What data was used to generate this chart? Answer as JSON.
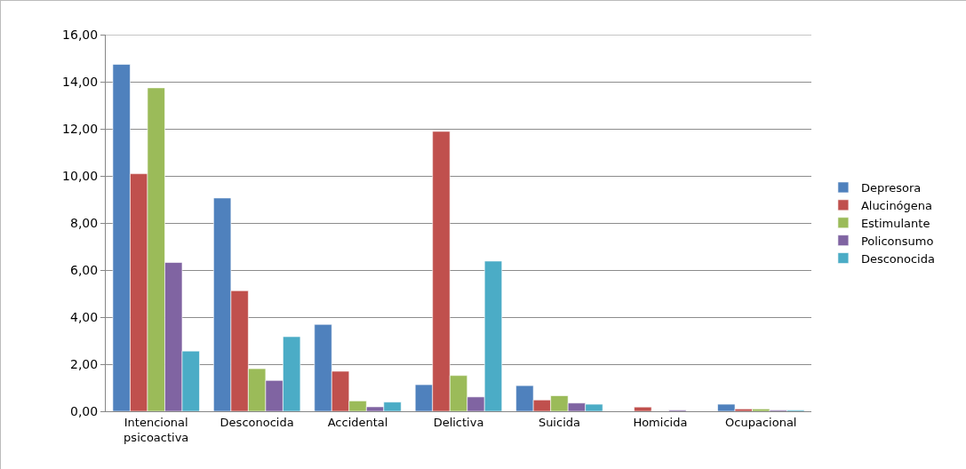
{
  "chart_data": {
    "type": "bar",
    "categories": [
      "Intencional\npsicoactiva",
      "Desconocida",
      "Accidental",
      "Delictiva",
      "Suicida",
      "Homicida",
      "Ocupacional"
    ],
    "series": [
      {
        "name": "Depresora",
        "color": "#4f81bd",
        "values": [
          14.74,
          9.06,
          3.69,
          1.13,
          1.09,
          null,
          0.3
        ]
      },
      {
        "name": "Alucinógena",
        "color": "#c0504d",
        "values": [
          10.09,
          5.12,
          1.7,
          11.89,
          0.48,
          0.18,
          0.1
        ]
      },
      {
        "name": "Estimulante",
        "color": "#9bbb59",
        "values": [
          13.74,
          1.81,
          0.44,
          1.52,
          0.66,
          null,
          0.1
        ]
      },
      {
        "name": "Policonsumo",
        "color": "#8064a2",
        "values": [
          6.32,
          1.31,
          0.19,
          0.61,
          0.35,
          0.05,
          0.05
        ]
      },
      {
        "name": "Desconocida",
        "color": "#4bacc6",
        "values": [
          2.56,
          3.17,
          0.39,
          6.38,
          0.3,
          null,
          0.05
        ]
      }
    ],
    "ylim": [
      0,
      16
    ],
    "yticks": [
      {
        "value": 0,
        "label": "0,00"
      },
      {
        "value": 2,
        "label": "2,00"
      },
      {
        "value": 4,
        "label": "4,00"
      },
      {
        "value": 6,
        "label": "6,00"
      },
      {
        "value": 8,
        "label": "8,00"
      },
      {
        "value": 10,
        "label": "10,00"
      },
      {
        "value": 12,
        "label": "12,00"
      },
      {
        "value": 14,
        "label": "14,00"
      },
      {
        "value": 16,
        "label": "16,00"
      }
    ],
    "grid": "y",
    "legend": "right"
  }
}
